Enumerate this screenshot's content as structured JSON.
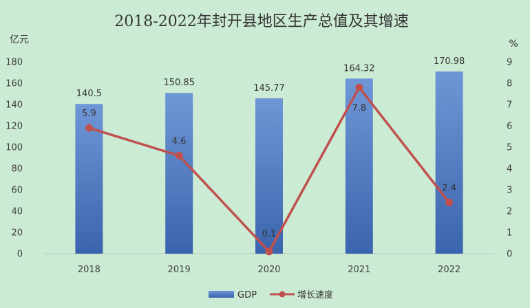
{
  "chart_data": {
    "type": "bar",
    "title": "2018-2022年封开县地区生产总值及其增速",
    "ylabel_left": "亿元",
    "ylabel_right": "%",
    "categories": [
      "2018",
      "2019",
      "2020",
      "2021",
      "2022"
    ],
    "series": [
      {
        "name": "GDP",
        "type": "bar",
        "axis": "left",
        "values": [
          140.5,
          150.85,
          145.77,
          164.32,
          170.98
        ],
        "labels": [
          "140.5",
          "150.85",
          "145.77",
          "164.32",
          "170.98"
        ],
        "color": "#4a78c2"
      },
      {
        "name": "增长速度",
        "type": "line",
        "axis": "right",
        "values": [
          5.9,
          4.6,
          0.1,
          7.8,
          2.4
        ],
        "labels": [
          "5.9",
          "4.6",
          "0.1",
          "7.8",
          "2.4"
        ],
        "color": "#c0504d"
      }
    ],
    "ylim_left": [
      0,
      180
    ],
    "yticks_left": [
      "0",
      "20",
      "40",
      "60",
      "80",
      "100",
      "120",
      "140",
      "160",
      "180"
    ],
    "ylim_right": [
      0,
      9
    ],
    "yticks_right": [
      "0",
      "1",
      "2",
      "3",
      "4",
      "5",
      "6",
      "7",
      "8",
      "9"
    ],
    "grid": false,
    "legend_position": "bottom"
  }
}
